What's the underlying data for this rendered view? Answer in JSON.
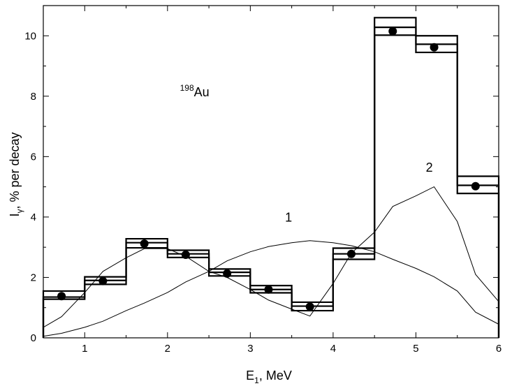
{
  "chart_data": {
    "type": "line",
    "title": "",
    "xlabel": {
      "main": "E",
      "sub": "1",
      "rest": ", MeV"
    },
    "ylabel": {
      "main": "I",
      "sub": "γ",
      "rest": ", % per decay"
    },
    "xlim": [
      0.5,
      6
    ],
    "ylim": [
      0,
      11
    ],
    "xticks": [
      1,
      2,
      3,
      4,
      5,
      6
    ],
    "yticks": [
      0,
      2,
      4,
      6,
      8,
      10
    ],
    "grid": false,
    "legend": "none",
    "annotations": {
      "isotope": {
        "sup": "198",
        "text": "Au",
        "x": 2.15,
        "y": 8.0
      },
      "curve1": {
        "text": "1",
        "x": 3.42,
        "y": 3.85
      },
      "curve2": {
        "text": "2",
        "x": 5.12,
        "y": 5.5
      }
    },
    "histogram": {
      "bin_width": 0.5,
      "bins": [
        {
          "x0": 0.5,
          "x1": 1.0,
          "center": 1.35,
          "upper": 1.55,
          "lower": 1.28
        },
        {
          "x0": 1.0,
          "x1": 1.5,
          "center": 1.9,
          "upper": 2.02,
          "lower": 1.77
        },
        {
          "x0": 1.5,
          "x1": 2.0,
          "center": 3.15,
          "upper": 3.28,
          "lower": 2.98
        },
        {
          "x0": 2.0,
          "x1": 2.5,
          "center": 2.78,
          "upper": 2.9,
          "lower": 2.66
        },
        {
          "x0": 2.5,
          "x1": 3.0,
          "center": 2.17,
          "upper": 2.28,
          "lower": 2.05
        },
        {
          "x0": 3.0,
          "x1": 3.5,
          "center": 1.6,
          "upper": 1.73,
          "lower": 1.49
        },
        {
          "x0": 3.5,
          "x1": 4.0,
          "center": 1.05,
          "upper": 1.18,
          "lower": 0.9
        },
        {
          "x0": 4.0,
          "x1": 4.5,
          "center": 2.78,
          "upper": 2.97,
          "lower": 2.6
        },
        {
          "x0": 4.5,
          "x1": 5.0,
          "center": 10.28,
          "upper": 10.6,
          "lower": 10.02
        },
        {
          "x0": 5.0,
          "x1": 5.5,
          "center": 9.72,
          "upper": 10.0,
          "lower": 9.45
        },
        {
          "x0": 5.5,
          "x1": 6.0,
          "center": 5.05,
          "upper": 5.35,
          "lower": 4.78
        }
      ]
    },
    "points": {
      "x": [
        0.72,
        1.22,
        1.72,
        2.22,
        2.72,
        3.22,
        3.72,
        4.22,
        4.72,
        5.22,
        5.72
      ],
      "y": [
        1.38,
        1.88,
        3.12,
        2.75,
        2.13,
        1.6,
        1.03,
        2.78,
        10.15,
        9.62,
        5.02
      ]
    },
    "series": [
      {
        "x": [
          0.5,
          0.72,
          1.0,
          1.22,
          1.5,
          1.72,
          2.0,
          2.22,
          2.5,
          2.72,
          3.0,
          3.22,
          3.5,
          3.72,
          4.0,
          4.22,
          4.5,
          4.72,
          5.0,
          5.22,
          5.5,
          5.72,
          6.0
        ],
        "y": [
          0.05,
          0.15,
          0.35,
          0.55,
          0.9,
          1.15,
          1.5,
          1.85,
          2.2,
          2.55,
          2.85,
          3.02,
          3.15,
          3.22,
          3.15,
          3.05,
          2.85,
          2.6,
          2.3,
          2.02,
          1.55,
          0.85,
          0.45
        ]
      },
      {
        "x": [
          0.5,
          0.72,
          1.0,
          1.22,
          1.5,
          1.72,
          2.0,
          2.22,
          2.5,
          2.72,
          3.0,
          3.22,
          3.5,
          3.72,
          4.0,
          4.22,
          4.5,
          4.72,
          5.0,
          5.22,
          5.5,
          5.72,
          6.0
        ],
        "y": [
          0.35,
          0.7,
          1.5,
          2.2,
          2.65,
          2.95,
          2.95,
          2.7,
          2.2,
          2.0,
          1.6,
          1.25,
          0.95,
          0.72,
          1.8,
          2.8,
          3.5,
          4.35,
          4.7,
          5.0,
          3.85,
          2.1,
          1.2
        ]
      }
    ]
  }
}
